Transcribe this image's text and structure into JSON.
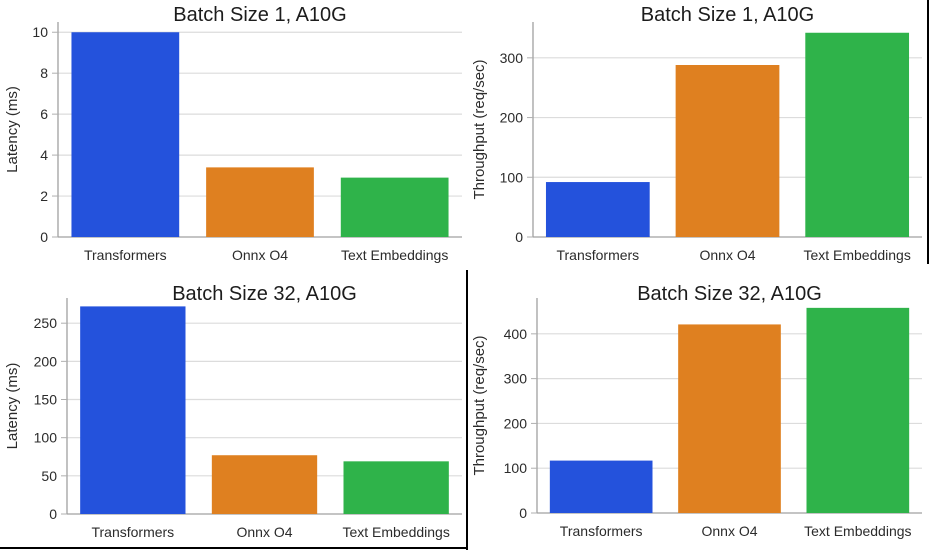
{
  "figure": {
    "background": "#ffffff",
    "description": "2x2 grid of benchmark bar charts on A10G GPU"
  },
  "palette": {
    "blue": "#2452DC",
    "orange": "#DF8020",
    "green": "#2FB34A",
    "grid": "#DCDCDC",
    "spine": "#A0A0A0",
    "tick_mark": "#AFAFAF",
    "tick_text": "#2B2B2B",
    "title_text": "#1C1C1C",
    "divider": "#000000"
  },
  "chart_data": [
    {
      "type": "bar",
      "title": "Batch Size 1, A10G",
      "ylabel": "Latency (ms)",
      "xlabel": "",
      "categories": [
        "Transformers",
        "Onnx O4",
        "Text Embeddings"
      ],
      "values": [
        10.0,
        3.4,
        2.9
      ],
      "bar_colors": [
        "blue",
        "orange",
        "green"
      ],
      "yticks": [
        0,
        2,
        4,
        6,
        8,
        10
      ],
      "ylim": [
        0,
        10.5
      ],
      "grid": true,
      "legend": "none"
    },
    {
      "type": "bar",
      "title": "Batch Size 1, A10G",
      "ylabel": "Throughput (req/sec)",
      "xlabel": "",
      "categories": [
        "Transformers",
        "Onnx O4",
        "Text Embeddings"
      ],
      "values": [
        92,
        288,
        342
      ],
      "bar_colors": [
        "blue",
        "orange",
        "green"
      ],
      "yticks": [
        0,
        100,
        200,
        300
      ],
      "ylim": [
        0,
        360
      ],
      "grid": true,
      "legend": "none"
    },
    {
      "type": "bar",
      "title": "Batch Size 32, A10G",
      "ylabel": "Latency (ms)",
      "xlabel": "",
      "categories": [
        "Transformers",
        "Onnx O4",
        "Text Embeddings"
      ],
      "values": [
        272,
        77,
        69
      ],
      "bar_colors": [
        "blue",
        "orange",
        "green"
      ],
      "yticks": [
        0,
        50,
        100,
        150,
        200,
        250
      ],
      "ylim": [
        0,
        283
      ],
      "grid": true,
      "legend": "none"
    },
    {
      "type": "bar",
      "title": "Batch Size 32, A10G",
      "ylabel": "Throughput (req/sec)",
      "xlabel": "",
      "categories": [
        "Transformers",
        "Onnx O4",
        "Text Embeddings"
      ],
      "values": [
        117,
        421,
        458
      ],
      "bar_colors": [
        "blue",
        "orange",
        "green"
      ],
      "yticks": [
        0,
        100,
        200,
        300,
        400
      ],
      "ylim": [
        0,
        480
      ],
      "grid": true,
      "legend": "none"
    }
  ]
}
